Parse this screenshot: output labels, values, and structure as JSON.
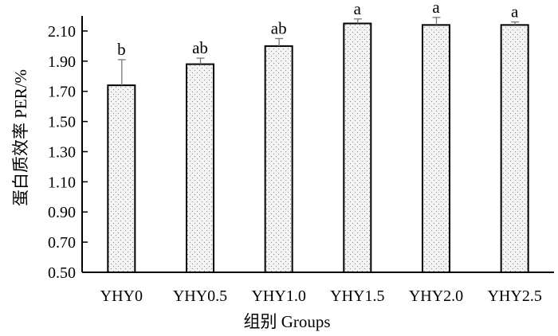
{
  "chart_data": {
    "type": "bar",
    "title": "",
    "xlabel": "组别  Groups",
    "ylabel": "蛋白质效率  PER/%",
    "ylim": [
      0.5,
      2.2
    ],
    "yticks": [
      "0.50",
      "0.70",
      "0.90",
      "1.10",
      "1.30",
      "1.50",
      "1.70",
      "1.90",
      "2.10"
    ],
    "categories": [
      "YHY0",
      "YHY0.5",
      "YHY1.0",
      "YHY1.5",
      "YHY2.0",
      "YHY2.5"
    ],
    "values": [
      1.74,
      1.88,
      2.0,
      2.15,
      2.14,
      2.14
    ],
    "errors": [
      0.17,
      0.04,
      0.05,
      0.03,
      0.05,
      0.02
    ],
    "significance": [
      "b",
      "ab",
      "ab",
      "a",
      "a",
      "a"
    ],
    "bar_fill": "dotted-light-gray",
    "grid": false,
    "legend": "none"
  }
}
